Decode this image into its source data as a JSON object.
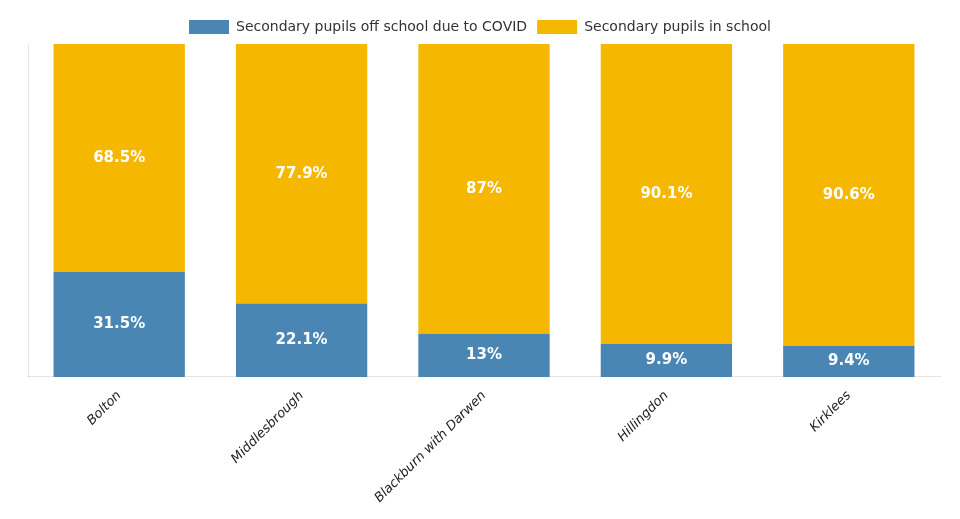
{
  "chart_data": {
    "type": "bar",
    "stacked": true,
    "categories": [
      "Bolton",
      "Middlesbrough",
      "Blackburn with Darwen",
      "Hillingdon",
      "Kirklees"
    ],
    "series": [
      {
        "name": "Secondary pupils off school due to COVID",
        "color": "#4a86b4",
        "values": [
          31.5,
          22.1,
          13.0,
          9.9,
          9.4
        ],
        "value_labels": [
          "31.5%",
          "22.1%",
          "13%",
          "9.9%",
          "9.4%"
        ]
      },
      {
        "name": "Secondary pupils in school",
        "color": "#f5b700",
        "values": [
          68.5,
          77.9,
          87.0,
          90.1,
          90.6
        ],
        "value_labels": [
          "68.5%",
          "77.9%",
          "87%",
          "90.1%",
          "90.6%"
        ]
      }
    ],
    "ylim": [
      0,
      100
    ],
    "tick_labels": "x",
    "grid": false,
    "legend": "top",
    "data_labels": true
  }
}
